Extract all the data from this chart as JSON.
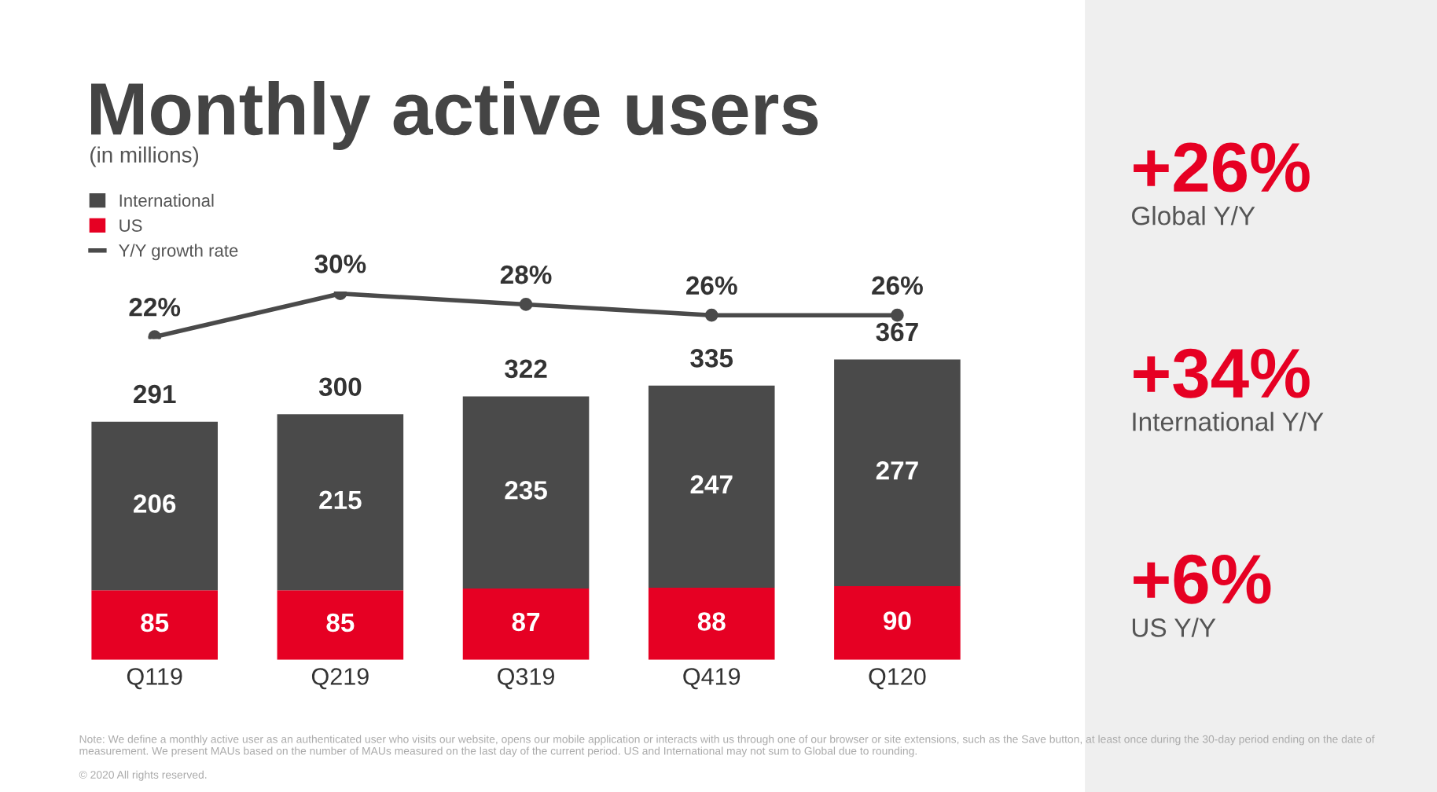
{
  "chart_data": [
    {
      "type": "line",
      "title": "Monthly active users",
      "subtitle": "(in millions)",
      "categories": [
        null,
        null,
        null,
        null,
        null
      ],
      "tick_labels": false,
      "marker": "circle",
      "legend": "top left",
      "series": [
        {
          "name": "Y/Y growth rate",
          "color": "#4a4a4a",
          "values": [
            22,
            30,
            28,
            26,
            26
          ],
          "value_labels": [
            "22%",
            "30%",
            "28%",
            "26%",
            "26%"
          ]
        }
      ]
    },
    {
      "type": "bar",
      "stacked": true,
      "categories": [
        "Q119",
        "Q219",
        "Q319",
        "Q419",
        "Q120"
      ],
      "series": [
        {
          "name": "US",
          "color": "#e60023",
          "values": [
            85,
            85,
            87,
            88,
            90
          ]
        },
        {
          "name": "International",
          "color": "#4a4a4a",
          "values": [
            206,
            215,
            235,
            247,
            277
          ]
        }
      ],
      "data_labels": true,
      "totals": [
        "291",
        "300",
        "322",
        "335",
        "367"
      ],
      "tick_labels": "x",
      "grid": false,
      "legend": "top left",
      "annotations": [
        "Note: We define a monthly active user as an authenticated user who visits our website, opens our mobile application or interacts with us through one of our browser or site extensions, such as the Save button, at least once during the 30-day period ending on the date of measurement. We present MAUs based on the number of MAUs measured on the last day of the current period. US and International may not sum to Global due to rounding.",
        "© 2020 All rights reserved."
      ]
    },
    {
      "type": "other",
      "annotations": [
        "+26%",
        "Global Y/Y",
        "+34%",
        "International Y/Y",
        "+6%",
        "US Y/Y"
      ]
    }
  ]
}
